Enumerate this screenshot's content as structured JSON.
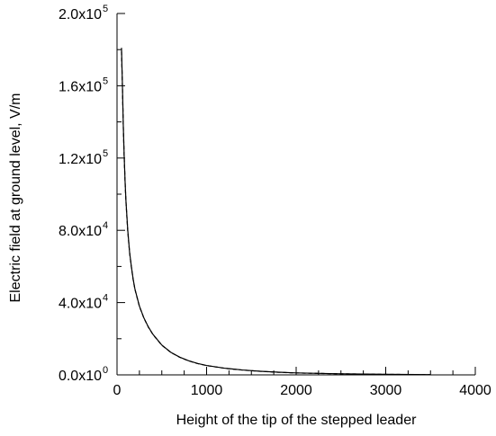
{
  "chart_data": {
    "type": "line",
    "title": "",
    "xlabel": "Height of the tip of the stepped leader",
    "ylabel": "Electric field at ground level, V/m",
    "xlim": [
      0,
      4000
    ],
    "ylim": [
      0,
      200000
    ],
    "grid": false,
    "x_ticks": [
      {
        "value": 0,
        "label": "0"
      },
      {
        "value": 1000,
        "label": "1000"
      },
      {
        "value": 2000,
        "label": "2000"
      },
      {
        "value": 3000,
        "label": "3000"
      },
      {
        "value": 4000,
        "label": "4000"
      }
    ],
    "y_ticks": [
      {
        "value": 0,
        "mantissa": "0.0x10",
        "exp": "0"
      },
      {
        "value": 40000,
        "mantissa": "4.0x10",
        "exp": "4"
      },
      {
        "value": 80000,
        "mantissa": "8.0x10",
        "exp": "4"
      },
      {
        "value": 120000,
        "mantissa": "1.2x10",
        "exp": "5"
      },
      {
        "value": 160000,
        "mantissa": "1.6x10",
        "exp": "5"
      },
      {
        "value": 200000,
        "mantissa": "2.0x10",
        "exp": "5"
      }
    ],
    "series": [
      {
        "style": "solid",
        "x": [
          50,
          60,
          70,
          80,
          90,
          100,
          120,
          140,
          160,
          180,
          200,
          250,
          300,
          350,
          400,
          500,
          600,
          700,
          800,
          900,
          1000,
          1200,
          1400,
          1600,
          1800,
          2000,
          2500,
          3000,
          3500
        ],
        "y": [
          181000,
          161000,
          138000,
          121000,
          107000,
          96000,
          80000,
          68000,
          60000,
          53000,
          47500,
          38000,
          31500,
          26500,
          22500,
          16500,
          12500,
          9800,
          7800,
          6300,
          5200,
          3700,
          2700,
          2000,
          1500,
          1100,
          600,
          300,
          120
        ]
      },
      {
        "style": "dashed",
        "x": [
          50,
          60,
          70,
          80,
          90,
          100,
          120,
          140,
          160,
          180,
          200,
          250,
          300,
          350,
          400,
          500,
          600,
          700,
          800,
          900,
          1000,
          1200,
          1400,
          1600,
          1800,
          2000,
          2500,
          3000,
          3500
        ],
        "y": [
          179000,
          160000,
          137500,
          120500,
          106500,
          95500,
          79500,
          67800,
          59800,
          52800,
          47300,
          37900,
          31400,
          26400,
          22400,
          16400,
          12450,
          9750,
          7750,
          6250,
          5150,
          3650,
          2650,
          1950,
          1450,
          1050,
          580,
          290,
          110
        ]
      }
    ]
  }
}
